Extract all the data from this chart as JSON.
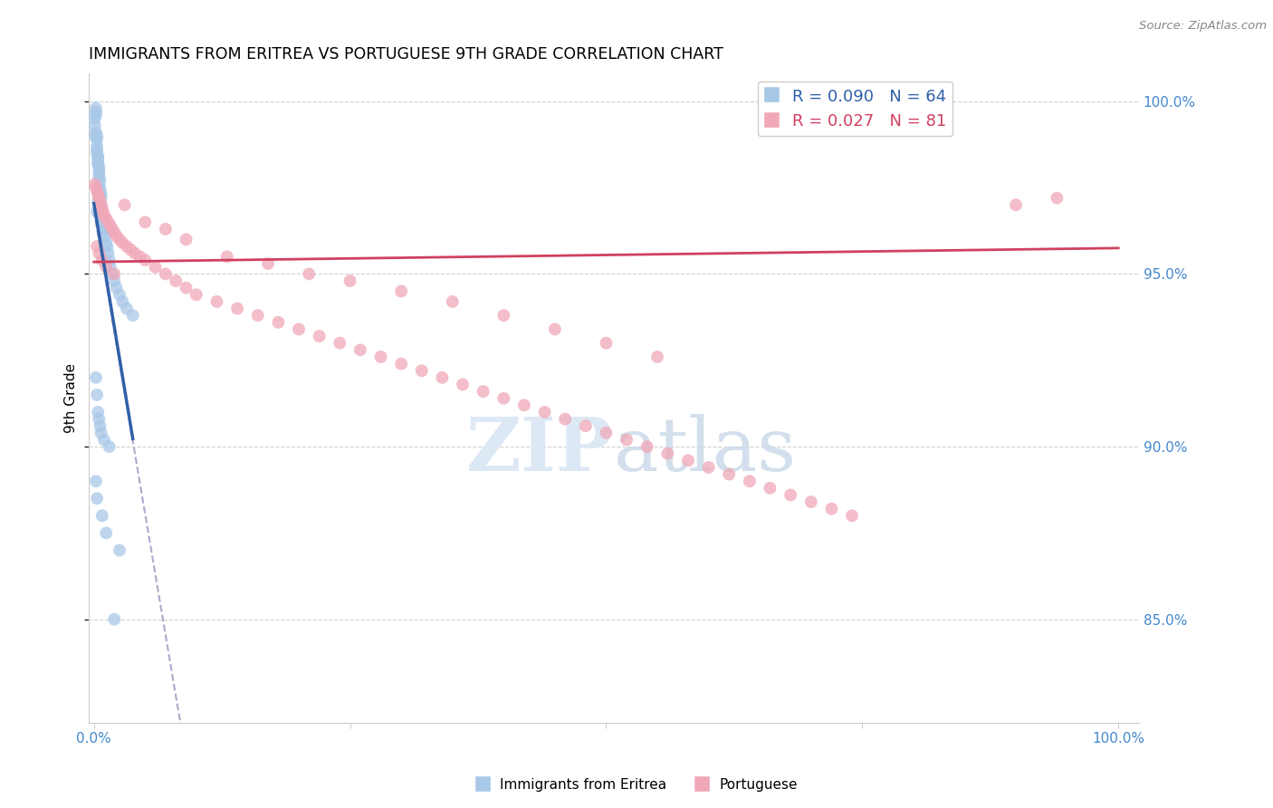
{
  "title": "IMMIGRANTS FROM ERITREA VS PORTUGUESE 9TH GRADE CORRELATION CHART",
  "source": "Source: ZipAtlas.com",
  "ylabel_left": "9th Grade",
  "legend_label1": "Immigrants from Eritrea",
  "legend_label2": "Portuguese",
  "R1": 0.09,
  "N1": 64,
  "R2": 0.027,
  "N2": 81,
  "color_blue": "#a8c8e8",
  "color_pink": "#f0a8b8",
  "color_blue_line": "#3060a8",
  "color_pink_line": "#d04060",
  "color_dashed_line": "#aaaacc",
  "watermark_color": "#dde8f5",
  "ytick_color": "#4488cc",
  "grid_color": "#cccccc",
  "background_color": "#ffffff",
  "blue_x": [
    0.001,
    0.001,
    0.001,
    0.002,
    0.002,
    0.002,
    0.002,
    0.003,
    0.003,
    0.003,
    0.003,
    0.003,
    0.004,
    0.004,
    0.004,
    0.004,
    0.004,
    0.005,
    0.005,
    0.005,
    0.005,
    0.006,
    0.006,
    0.006,
    0.007,
    0.007,
    0.007,
    0.007,
    0.008,
    0.008,
    0.009,
    0.009,
    0.01,
    0.011,
    0.012,
    0.013,
    0.014,
    0.015,
    0.016,
    0.018,
    0.02,
    0.022,
    0.025,
    0.028,
    0.032,
    0.038,
    0.003,
    0.004,
    0.005,
    0.006,
    0.002,
    0.003,
    0.004,
    0.005,
    0.006,
    0.007,
    0.01,
    0.015,
    0.025,
    0.002,
    0.003,
    0.008,
    0.012,
    0.02
  ],
  "blue_y": [
    0.995,
    0.993,
    0.99,
    0.998,
    0.997,
    0.996,
    0.991,
    0.99,
    0.989,
    0.987,
    0.986,
    0.985,
    0.984,
    0.984,
    0.983,
    0.982,
    0.982,
    0.981,
    0.98,
    0.979,
    0.978,
    0.977,
    0.975,
    0.974,
    0.973,
    0.972,
    0.97,
    0.968,
    0.966,
    0.965,
    0.964,
    0.963,
    0.962,
    0.961,
    0.959,
    0.958,
    0.956,
    0.954,
    0.952,
    0.95,
    0.948,
    0.946,
    0.944,
    0.942,
    0.94,
    0.938,
    0.968,
    0.971,
    0.972,
    0.969,
    0.92,
    0.915,
    0.91,
    0.908,
    0.906,
    0.904,
    0.902,
    0.9,
    0.87,
    0.89,
    0.885,
    0.88,
    0.875,
    0.85
  ],
  "pink_x": [
    0.001,
    0.002,
    0.003,
    0.004,
    0.005,
    0.006,
    0.007,
    0.008,
    0.009,
    0.01,
    0.012,
    0.014,
    0.016,
    0.018,
    0.02,
    0.022,
    0.025,
    0.028,
    0.032,
    0.036,
    0.04,
    0.045,
    0.05,
    0.06,
    0.07,
    0.08,
    0.09,
    0.1,
    0.12,
    0.14,
    0.16,
    0.18,
    0.2,
    0.22,
    0.24,
    0.26,
    0.28,
    0.3,
    0.32,
    0.34,
    0.36,
    0.38,
    0.4,
    0.42,
    0.44,
    0.46,
    0.48,
    0.5,
    0.52,
    0.54,
    0.56,
    0.58,
    0.6,
    0.62,
    0.64,
    0.66,
    0.68,
    0.7,
    0.72,
    0.74,
    0.03,
    0.05,
    0.07,
    0.09,
    0.13,
    0.17,
    0.21,
    0.25,
    0.3,
    0.35,
    0.4,
    0.45,
    0.5,
    0.55,
    0.9,
    0.94,
    0.003,
    0.005,
    0.008,
    0.012,
    0.02
  ],
  "pink_y": [
    0.976,
    0.975,
    0.974,
    0.973,
    0.972,
    0.971,
    0.97,
    0.969,
    0.968,
    0.967,
    0.966,
    0.965,
    0.964,
    0.963,
    0.962,
    0.961,
    0.96,
    0.959,
    0.958,
    0.957,
    0.956,
    0.955,
    0.954,
    0.952,
    0.95,
    0.948,
    0.946,
    0.944,
    0.942,
    0.94,
    0.938,
    0.936,
    0.934,
    0.932,
    0.93,
    0.928,
    0.926,
    0.924,
    0.922,
    0.92,
    0.918,
    0.916,
    0.914,
    0.912,
    0.91,
    0.908,
    0.906,
    0.904,
    0.902,
    0.9,
    0.898,
    0.896,
    0.894,
    0.892,
    0.89,
    0.888,
    0.886,
    0.884,
    0.882,
    0.88,
    0.97,
    0.965,
    0.963,
    0.96,
    0.955,
    0.953,
    0.95,
    0.948,
    0.945,
    0.942,
    0.938,
    0.934,
    0.93,
    0.926,
    0.97,
    0.972,
    0.958,
    0.956,
    0.954,
    0.952,
    0.95
  ],
  "ylim_min": 0.82,
  "ylim_max": 1.008,
  "xlim_min": -0.005,
  "xlim_max": 1.02
}
